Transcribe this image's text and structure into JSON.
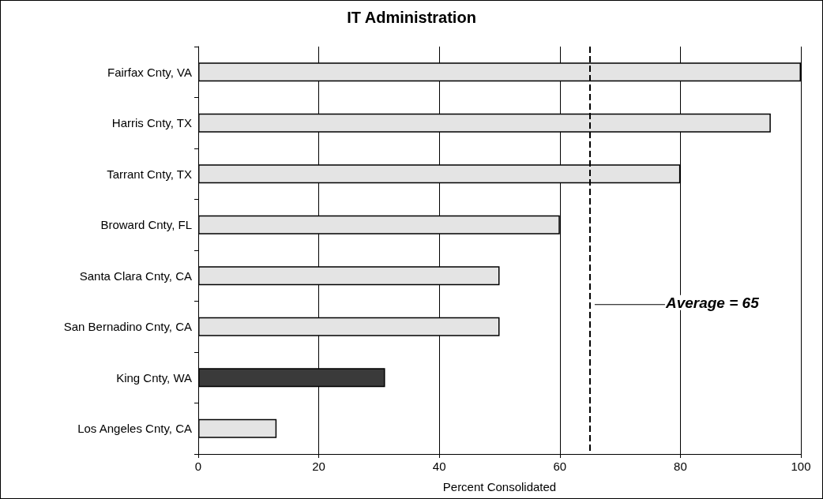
{
  "chart_data": {
    "type": "bar",
    "orientation": "horizontal",
    "title": "IT Administration",
    "xlabel": "Percent Consolidated",
    "categories": [
      "Fairfax Cnty, VA",
      "Harris Cnty, TX",
      "Tarrant Cnty, TX",
      "Broward Cnty, FL",
      "Santa Clara Cnty, CA",
      "San Bernadino Cnty, CA",
      "King Cnty, WA",
      "Los Angeles Cnty, CA"
    ],
    "values": [
      100,
      95,
      80,
      60,
      50,
      50,
      31,
      13
    ],
    "colors": [
      "#e4e4e4",
      "#e4e4e4",
      "#e4e4e4",
      "#e4e4e4",
      "#e4e4e4",
      "#e4e4e4",
      "#3a3a3a",
      "#e4e4e4"
    ],
    "xlim": [
      0,
      100
    ],
    "xticks": [
      0,
      20,
      40,
      60,
      80,
      100
    ],
    "grid": "x",
    "ref_lines": [
      {
        "axis": "x",
        "value": 65,
        "label": "Average = 65",
        "line_style": "dashed",
        "color": "#000000"
      }
    ]
  }
}
